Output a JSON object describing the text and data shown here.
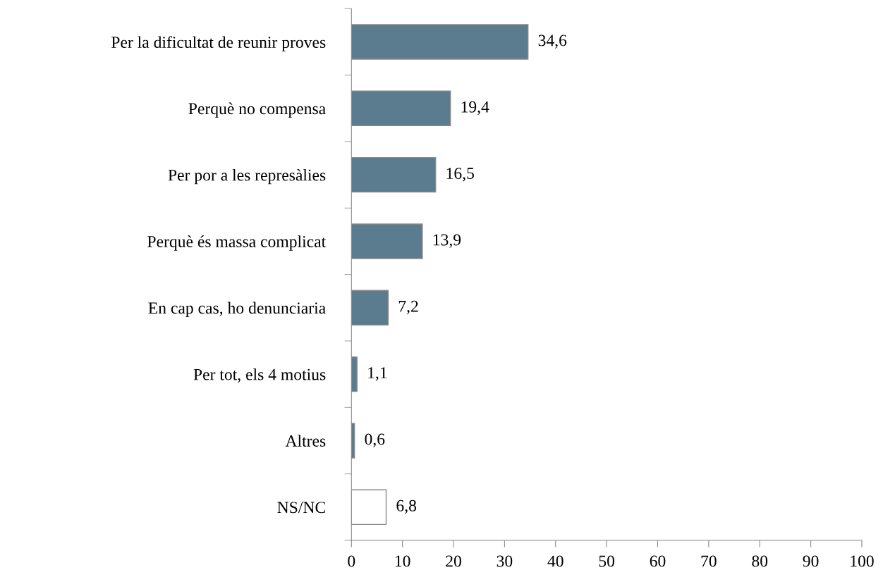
{
  "chart_data": {
    "type": "bar",
    "orientation": "horizontal",
    "categories": [
      "Per la dificultat de reunir proves",
      "Perquè no compensa",
      "Per por a les represàlies",
      "Perquè és massa complicat",
      "En cap cas, ho denunciaria",
      "Per tot, els 4 motius",
      "Altres",
      "NS/NC"
    ],
    "values": [
      34.6,
      19.4,
      16.5,
      13.9,
      7.2,
      1.1,
      0.6,
      6.8
    ],
    "colors": [
      "#5b7b8e",
      "#5b7b8e",
      "#5b7b8e",
      "#5b7b8e",
      "#5b7b8e",
      "#5b7b8e",
      "#5b7b8e",
      "#ffffff"
    ],
    "value_labels": [
      "34,6",
      "19,4",
      "16,5",
      "13,9",
      "7,2",
      "1,1",
      "0,6",
      "6,8"
    ],
    "xlim": [
      0,
      100
    ],
    "xticks": [
      0,
      10,
      20,
      30,
      40,
      50,
      60,
      70,
      80,
      90,
      100
    ],
    "grid": false,
    "legend": false
  }
}
